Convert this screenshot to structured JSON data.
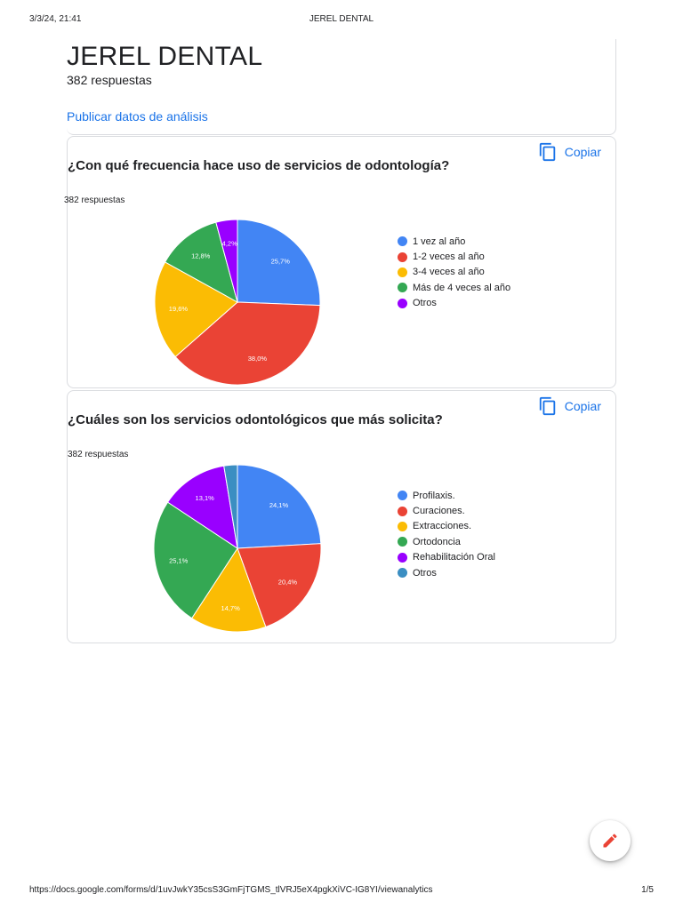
{
  "print": {
    "date": "3/3/24, 21:41",
    "title": "JEREL DENTAL",
    "url": "https://docs.google.com/forms/d/1uvJwkY35csS3GmFjTGMS_tlVRJ5eX4pgkXiVC-IG8YI/viewanalytics",
    "page": "1/5"
  },
  "header": {
    "title": "JEREL DENTAL",
    "responses": "382 respuestas",
    "publish_link": "Publicar datos de análisis"
  },
  "questions": [
    {
      "title": "¿Con qué frecuencia hace uso de servicios de odontología?",
      "responses": "382 respuestas",
      "copy_label": "Copiar"
    },
    {
      "title": "¿Cuáles son los servicios odontológicos que más solicita?",
      "responses": "382 respuestas",
      "copy_label": "Copiar"
    }
  ],
  "chart_data": [
    {
      "type": "pie",
      "labels": [
        "1 vez al año",
        "1-2 veces al año",
        "3-4 veces al año",
        "Más de 4 veces al año",
        "Otros"
      ],
      "values": [
        25.7,
        38.0,
        19.6,
        12.8,
        4.2
      ],
      "value_labels": [
        "25,7%",
        "38,0%",
        "19,6%",
        "12,8%",
        "4,2%"
      ],
      "colors": [
        "#4285f4",
        "#ea4335",
        "#fbbc04",
        "#34a853",
        "#9900ff"
      ],
      "legend_position": "right"
    },
    {
      "type": "pie",
      "labels": [
        "Profilaxis.",
        "Curaciones.",
        "Extracciones.",
        "Ortodoncia",
        "Rehabilitación Oral",
        "Otros"
      ],
      "values": [
        24.1,
        20.4,
        14.7,
        25.1,
        13.1,
        2.6
      ],
      "value_labels": [
        "24,1%",
        "20,4%",
        "14,7%",
        "25,1%",
        "13,1%",
        ""
      ],
      "colors": [
        "#4285f4",
        "#ea4335",
        "#fbbc04",
        "#34a853",
        "#9900ff",
        "#3b8ec2"
      ],
      "legend_position": "right"
    }
  ],
  "icons": {
    "copy": "copy-icon",
    "edit": "pencil-icon"
  },
  "colors": {
    "link": "#1a73e8",
    "fab_icon": "#ea4335"
  }
}
